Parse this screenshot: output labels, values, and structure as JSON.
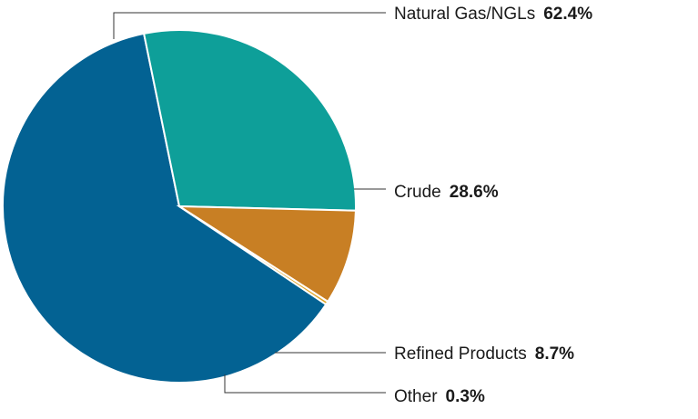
{
  "chart_data": {
    "type": "pie",
    "title": "",
    "slices": [
      {
        "label": "Natural Gas/NGLs",
        "value": 62.4,
        "display": "62.4%",
        "color": "#036293"
      },
      {
        "label": "Crude",
        "value": 28.6,
        "display": "28.6%",
        "color": "#0e9f99"
      },
      {
        "label": "Refined Products",
        "value": 8.7,
        "display": "8.7%",
        "color": "#c87f24"
      },
      {
        "label": "Other",
        "value": 0.3,
        "display": "0.3%",
        "color": "#e0a528"
      }
    ]
  }
}
